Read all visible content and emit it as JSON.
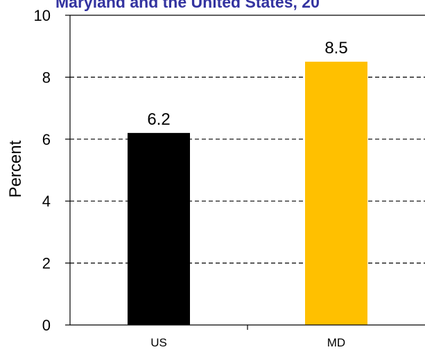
{
  "chart_data": {
    "type": "bar",
    "title": "Maryland and the United States, 20",
    "title_color": "#3333a0",
    "ylabel": "Percent",
    "xlabel": "",
    "ylim": [
      0,
      10
    ],
    "yticks": [
      0,
      2,
      4,
      6,
      8,
      10
    ],
    "grid": true,
    "grid_style": "dashed",
    "categories": [
      "US",
      "MD"
    ],
    "values": [
      6.2,
      8.5
    ],
    "data_labels": [
      "6.2",
      "8.5"
    ],
    "bar_colors": [
      "#000000",
      "#ffc000"
    ]
  }
}
